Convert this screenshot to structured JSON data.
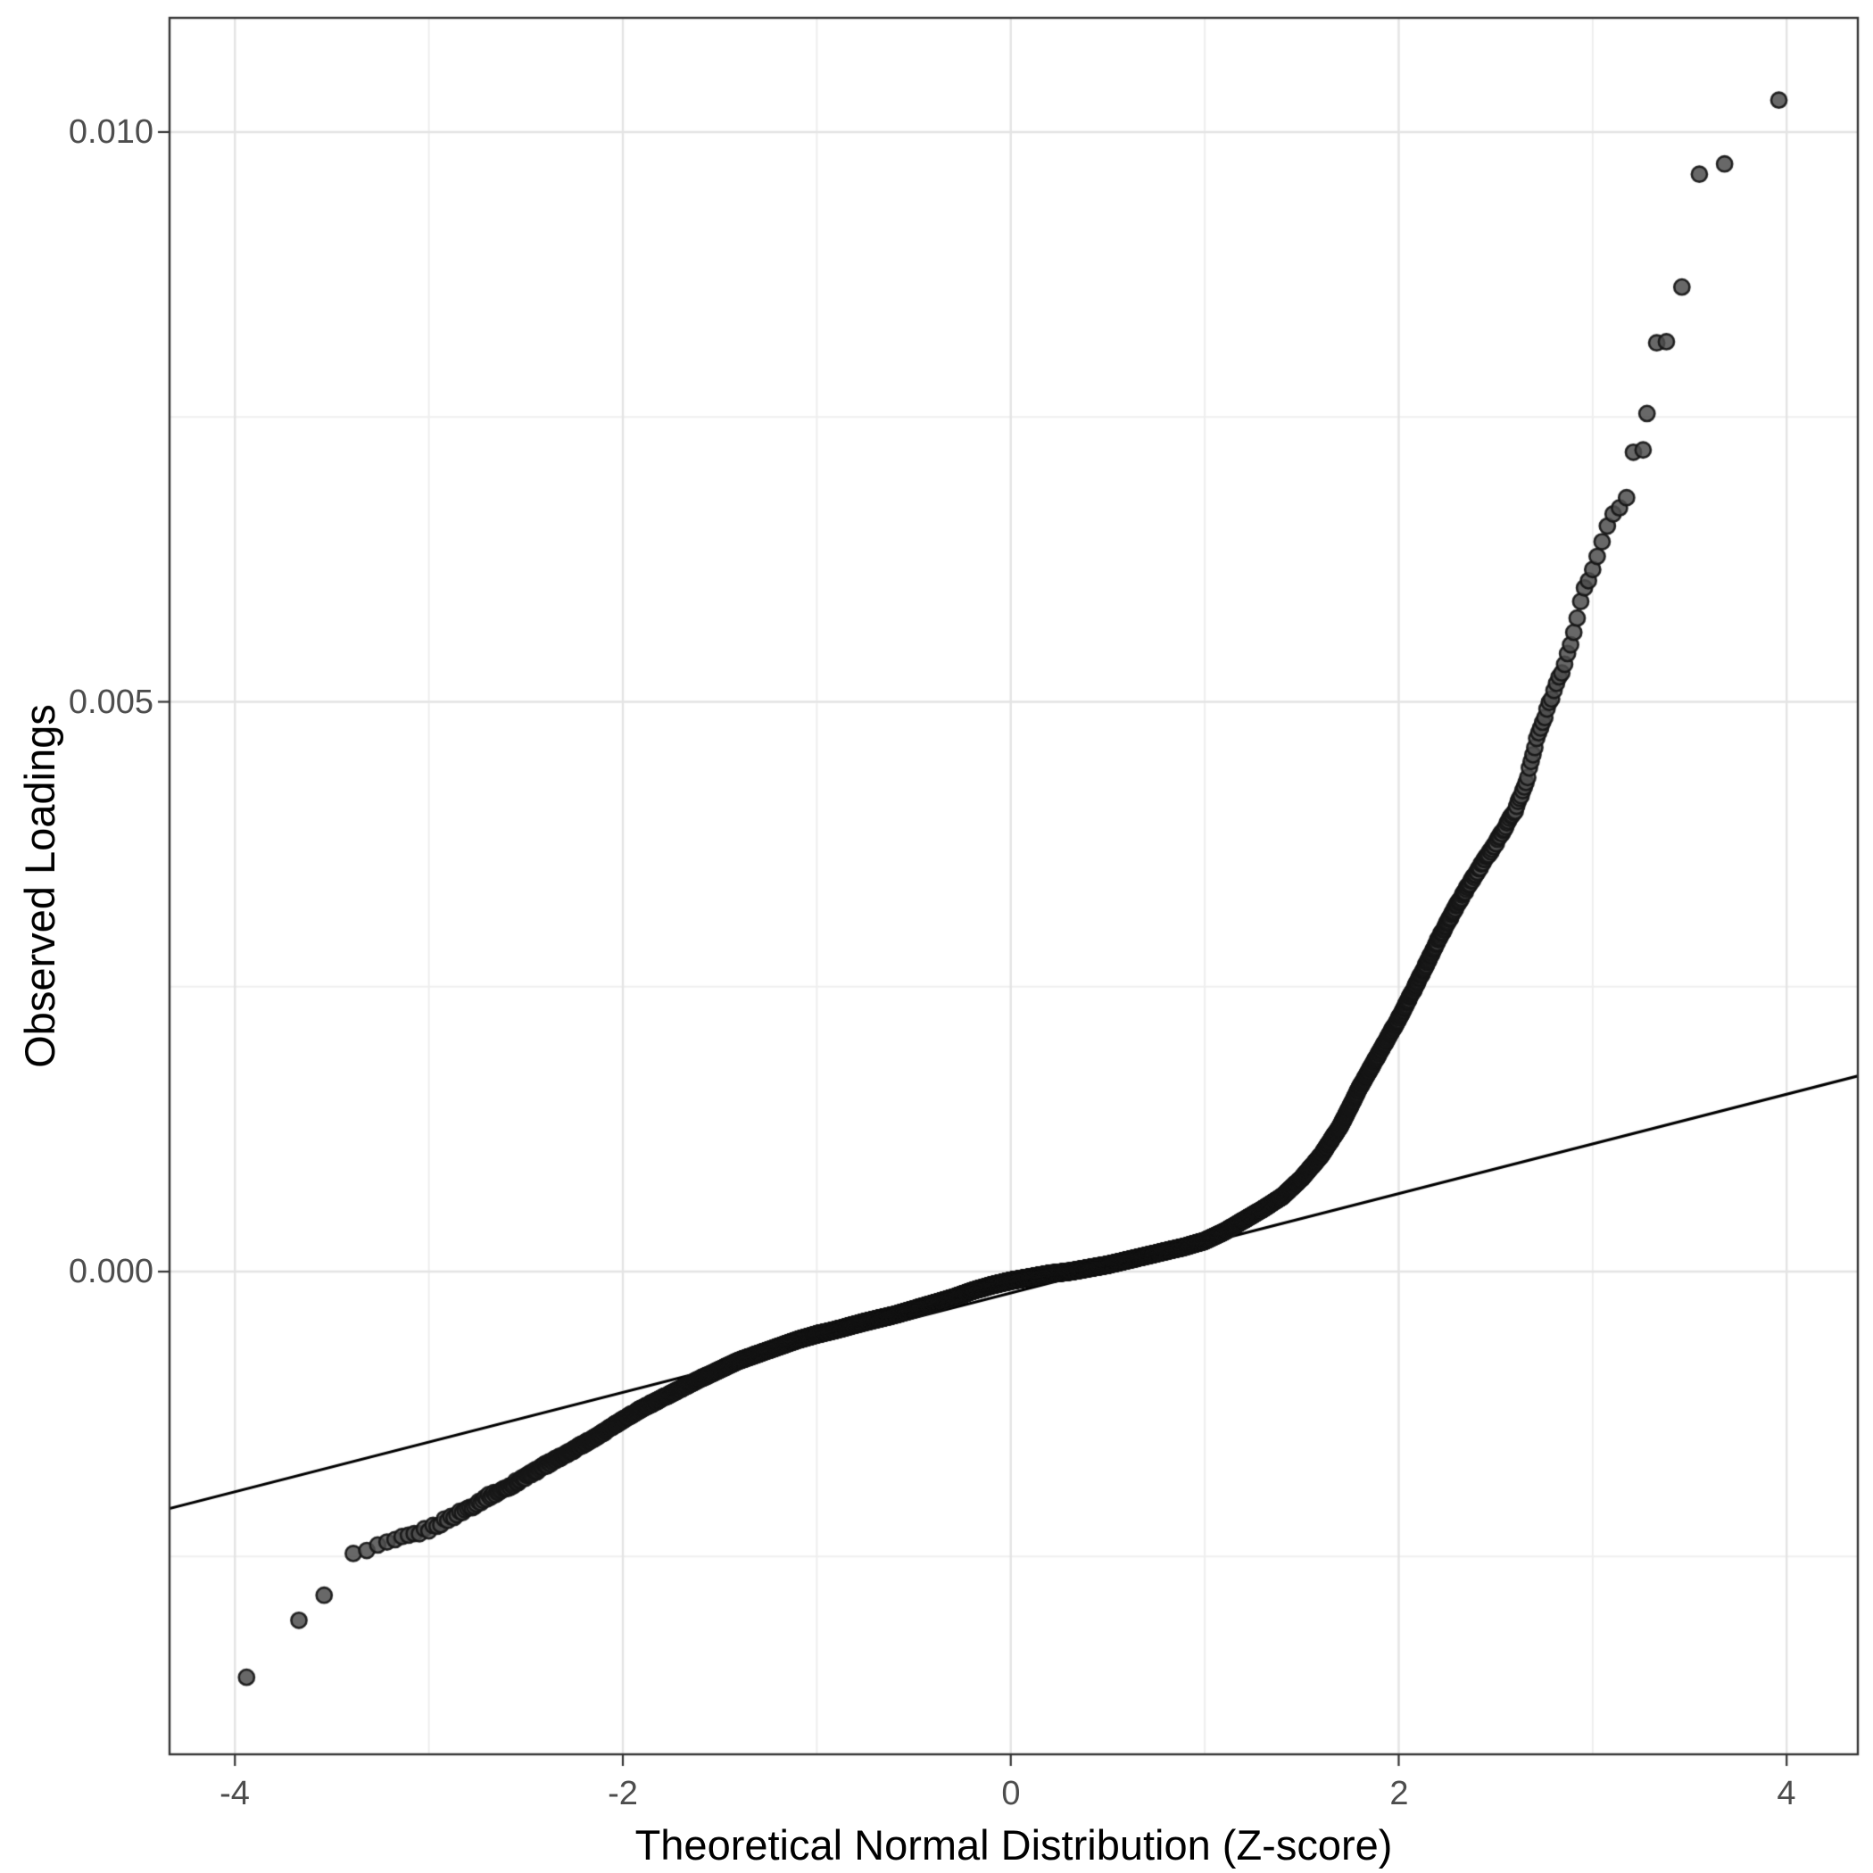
{
  "figure": {
    "kind": "qq-plot",
    "background": "#ffffff"
  },
  "chart_data": {
    "type": "scatter",
    "title": "",
    "xlabel": "Theoretical Normal Distribution (Z-score)",
    "ylabel": "Observed Loadings",
    "legend": "none",
    "grid": "on",
    "xlim": [
      -4.337,
      4.367
    ],
    "ylim": [
      -0.004236,
      0.011002
    ],
    "x_axis": {
      "major_ticks": [
        -4,
        -2,
        0,
        2,
        4
      ],
      "minor_ticks": [
        -3,
        -1,
        1,
        3
      ],
      "labels": [
        "-4",
        "-2",
        "0",
        "2",
        "4"
      ]
    },
    "y_axis": {
      "major_ticks": [
        0.0,
        0.005,
        0.01
      ],
      "minor_ticks": [
        -0.0025,
        0.0025,
        0.0075
      ],
      "labels": [
        "0.000",
        "0.005",
        "0.010"
      ]
    },
    "n_points": 10000,
    "band_z_range": [
      -3.46,
      3.19
    ],
    "curve_anchors": [
      [
        -3.46,
        -0.00252
      ],
      [
        -3.38,
        -0.00248
      ],
      [
        -3.3,
        -0.00244
      ],
      [
        -3.2,
        -0.00238
      ],
      [
        -3.1,
        -0.00232
      ],
      [
        -3.0,
        -0.00226
      ],
      [
        -2.9,
        -0.00217
      ],
      [
        -2.8,
        -0.00208
      ],
      [
        -2.7,
        -0.00198
      ],
      [
        -2.6,
        -0.0019
      ],
      [
        -2.5,
        -0.0018
      ],
      [
        -2.4,
        -0.0017
      ],
      [
        -2.25,
        -0.00156
      ],
      [
        -2.1,
        -0.00141
      ],
      [
        -2.0,
        -0.0013
      ],
      [
        -1.9,
        -0.0012
      ],
      [
        -1.75,
        -0.00107
      ],
      [
        -1.6,
        -0.00094
      ],
      [
        -1.5,
        -0.00086
      ],
      [
        -1.4,
        -0.00078
      ],
      [
        -1.25,
        -0.00069
      ],
      [
        -1.1,
        -0.0006
      ],
      [
        -1.0,
        -0.00055
      ],
      [
        -0.9,
        -0.00051
      ],
      [
        -0.75,
        -0.00044
      ],
      [
        -0.6,
        -0.00038
      ],
      [
        -0.5,
        -0.00033
      ],
      [
        -0.4,
        -0.00028
      ],
      [
        -0.3,
        -0.00023
      ],
      [
        -0.2,
        -0.00017
      ],
      [
        -0.1,
        -0.00012
      ],
      [
        0.0,
        -8e-05
      ],
      [
        0.1,
        -5e-05
      ],
      [
        0.2,
        -2e-05
      ],
      [
        0.3,
        0.0
      ],
      [
        0.4,
        3e-05
      ],
      [
        0.5,
        6e-05
      ],
      [
        0.6,
        0.0001
      ],
      [
        0.7,
        0.00014
      ],
      [
        0.8,
        0.00018
      ],
      [
        0.9,
        0.00022
      ],
      [
        1.0,
        0.00027
      ],
      [
        1.1,
        0.00035
      ],
      [
        1.2,
        0.00045
      ],
      [
        1.3,
        0.00055
      ],
      [
        1.4,
        0.00066
      ],
      [
        1.5,
        0.00082
      ],
      [
        1.6,
        0.00102
      ],
      [
        1.7,
        0.00128
      ],
      [
        1.8,
        0.00162
      ],
      [
        1.9,
        0.00192
      ],
      [
        2.0,
        0.00222
      ],
      [
        2.1,
        0.00255
      ],
      [
        2.2,
        0.0029
      ],
      [
        2.3,
        0.00322
      ],
      [
        2.4,
        0.0035
      ],
      [
        2.5,
        0.00376
      ],
      [
        2.6,
        0.00405
      ],
      [
        2.65,
        0.00425
      ],
      [
        2.68,
        0.00445
      ],
      [
        2.71,
        0.00468
      ],
      [
        2.75,
        0.00485
      ],
      [
        2.8,
        0.0051
      ],
      [
        2.85,
        0.0053
      ],
      [
        2.9,
        0.0056
      ],
      [
        2.95,
        0.00595
      ],
      [
        3.0,
        0.00615
      ],
      [
        3.05,
        0.00642
      ],
      [
        3.1,
        0.00662
      ],
      [
        3.15,
        0.00674
      ],
      [
        3.19,
        0.00684
      ]
    ],
    "outlier_points": [
      [
        -3.94,
        -0.00356
      ],
      [
        -3.67,
        -0.00306
      ],
      [
        -3.54,
        -0.00284
      ],
      [
        3.21,
        0.00719
      ],
      [
        3.26,
        0.00721
      ],
      [
        3.28,
        0.00753
      ],
      [
        3.33,
        0.00815
      ],
      [
        3.38,
        0.00816
      ],
      [
        3.46,
        0.00864
      ],
      [
        3.55,
        0.00963
      ],
      [
        3.68,
        0.00972
      ],
      [
        3.96,
        0.01028
      ]
    ],
    "reference_line": {
      "intercept": -0.000188,
      "slope": 0.000436,
      "color": "#000000",
      "width": 3.2
    },
    "style": {
      "point_fill": "rgba(77,77,77,0.85)",
      "point_stroke": "rgba(22,22,22,0.92)",
      "point_radius": 8.6,
      "point_stroke_width": 2.6,
      "grid_major_color": "#e4e4e4",
      "grid_minor_color": "#efefef",
      "grid_major_width": 2.4,
      "grid_minor_width": 2.0,
      "panel_border_color": "#333333",
      "panel_border_width": 2.4,
      "tick_mark_color": "#333333",
      "tick_mark_length": 13,
      "tick_label_color": "#4d4d4d",
      "title_color": "#000000"
    }
  }
}
